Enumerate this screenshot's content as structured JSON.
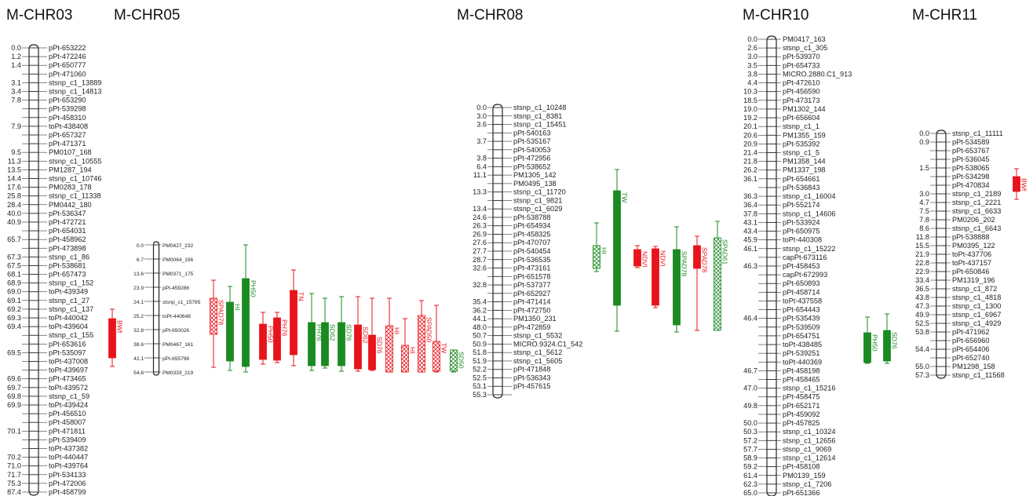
{
  "colors": {
    "red": "#e8141b",
    "green": "#1a8a21"
  },
  "chromosomes": [
    {
      "id": "M-CHR03",
      "title": "M-CHR03",
      "markers": [
        {
          "pos": "0.0",
          "name": "pPt-653222"
        },
        {
          "pos": "1.2",
          "name": "pPt-472246"
        },
        {
          "pos": "1.4",
          "name": "pPt-650777"
        },
        {
          "pos": "",
          "name": "pPt-471060"
        },
        {
          "pos": "3.1",
          "name": "stsnp_c1_13889"
        },
        {
          "pos": "3.4",
          "name": "stsnp_c1_14813"
        },
        {
          "pos": "7.8",
          "name": "pPt-653290"
        },
        {
          "pos": "",
          "name": "pPt-539298"
        },
        {
          "pos": "",
          "name": "pPt-458310"
        },
        {
          "pos": "7.9",
          "name": "toPt-438408"
        },
        {
          "pos": "",
          "name": "pPt-657327"
        },
        {
          "pos": "",
          "name": "pPt-471371"
        },
        {
          "pos": "9.5",
          "name": "PM0107_168"
        },
        {
          "pos": "11.3",
          "name": "stsnp_c1_10555"
        },
        {
          "pos": "13.5",
          "name": "PM1287_194"
        },
        {
          "pos": "14.4",
          "name": "stsnp_c1_10746"
        },
        {
          "pos": "17.6",
          "name": "PM0283_178"
        },
        {
          "pos": "25.8",
          "name": "stsnp_c1_11338"
        },
        {
          "pos": "28.4",
          "name": "PM0442_180"
        },
        {
          "pos": "40.0",
          "name": "pPt-536347"
        },
        {
          "pos": "40.9",
          "name": "pPt-472721"
        },
        {
          "pos": "",
          "name": "pPt-654031"
        },
        {
          "pos": "65.7",
          "name": "pPt-458962"
        },
        {
          "pos": "",
          "name": "pPt-473898"
        },
        {
          "pos": "67.3",
          "name": "stsnp_c1_86"
        },
        {
          "pos": "67.5",
          "name": "pPt-538681"
        },
        {
          "pos": "68.1",
          "name": "pPt-657473"
        },
        {
          "pos": "68.9",
          "name": "stsnp_c1_152"
        },
        {
          "pos": "69.0",
          "name": "toPt-439349"
        },
        {
          "pos": "69.1",
          "name": "stsnp_c1_27"
        },
        {
          "pos": "69.2",
          "name": "stsnp_c1_137"
        },
        {
          "pos": "69.3",
          "name": "toPt-440042"
        },
        {
          "pos": "69.4",
          "name": "toPt-439604"
        },
        {
          "pos": "",
          "name": "stsnp_c1_155"
        },
        {
          "pos": "",
          "name": "pPt-653616"
        },
        {
          "pos": "69.5",
          "name": "pPt-535097"
        },
        {
          "pos": "",
          "name": "toPt-437008"
        },
        {
          "pos": "",
          "name": "toPt-439697"
        },
        {
          "pos": "69.6",
          "name": "pPt-473465"
        },
        {
          "pos": "69.7",
          "name": "toPt-439572"
        },
        {
          "pos": "69.8",
          "name": "stsnp_c1_59"
        },
        {
          "pos": "69.9",
          "name": "toPt-439424"
        },
        {
          "pos": "",
          "name": "pPt-456510"
        },
        {
          "pos": "",
          "name": "pPt-458007"
        },
        {
          "pos": "70.1",
          "name": "pPt-471811"
        },
        {
          "pos": "",
          "name": "pPt-539409"
        },
        {
          "pos": "",
          "name": "toPt-437382"
        },
        {
          "pos": "70.2",
          "name": "toPt-440447"
        },
        {
          "pos": "71.0",
          "name": "toPt-439764"
        },
        {
          "pos": "71.7",
          "name": "pPt-534133"
        },
        {
          "pos": "75.3",
          "name": "pPt-472006"
        },
        {
          "pos": "87.4",
          "name": "pPt-458799"
        }
      ]
    },
    {
      "id": "M-CHR05",
      "title": "M-CHR05",
      "markers": [
        {
          "pos": "0.0",
          "name": "PM0427_232"
        },
        {
          "pos": "6.7",
          "name": "PM0064_156"
        },
        {
          "pos": "13.6",
          "name": "PM0371_175"
        },
        {
          "pos": "23.9",
          "name": "pPt-459286"
        },
        {
          "pos": "24.1",
          "name": "stsnp_c1_15785"
        },
        {
          "pos": "25.2",
          "name": "toPt-440648"
        },
        {
          "pos": "32.8",
          "name": "pPt-650026"
        },
        {
          "pos": "38.6",
          "name": "PM0467_161"
        },
        {
          "pos": "42.1",
          "name": "pPt-655798"
        },
        {
          "pos": "54.8",
          "name": "PM0333_219"
        }
      ]
    },
    {
      "id": "M-CHR08",
      "title": "M-CHR08",
      "markers": [
        {
          "pos": "0.0",
          "name": "stsnp_c1_10248"
        },
        {
          "pos": "3.0",
          "name": "stsnp_c1_8381"
        },
        {
          "pos": "3.6",
          "name": "stsnp_c1_15451"
        },
        {
          "pos": "",
          "name": "pPt-540163"
        },
        {
          "pos": "3.7",
          "name": "pPt-535167"
        },
        {
          "pos": "",
          "name": "pPt-540053"
        },
        {
          "pos": "3.8",
          "name": "pPt-472956"
        },
        {
          "pos": "6.4",
          "name": "pPt-538652"
        },
        {
          "pos": "11.1",
          "name": "PM1305_142"
        },
        {
          "pos": "",
          "name": "PM0495_138"
        },
        {
          "pos": "13.3",
          "name": "stsnp_c1_11720"
        },
        {
          "pos": "",
          "name": "stsnp_c1_9821"
        },
        {
          "pos": "13.4",
          "name": "stsnp_c1_6029"
        },
        {
          "pos": "24.6",
          "name": "pPt-538788"
        },
        {
          "pos": "26.3",
          "name": "pPt-654934"
        },
        {
          "pos": "26.9",
          "name": "pPt-458325"
        },
        {
          "pos": "27.6",
          "name": "pPt-470707"
        },
        {
          "pos": "27.7",
          "name": "pPt-540454"
        },
        {
          "pos": "28.7",
          "name": "pPt-536535"
        },
        {
          "pos": "32.6",
          "name": "pPt-473161"
        },
        {
          "pos": "",
          "name": "pPt-651578"
        },
        {
          "pos": "32.8",
          "name": "pPt-537377"
        },
        {
          "pos": "",
          "name": "pPt-652927"
        },
        {
          "pos": "35.4",
          "name": "pPt-471414"
        },
        {
          "pos": "36.2",
          "name": "pPt-472750"
        },
        {
          "pos": "44.1",
          "name": "PM1350_231"
        },
        {
          "pos": "48.0",
          "name": "pPt-472859"
        },
        {
          "pos": "50.7",
          "name": "stsnp_c1_5532"
        },
        {
          "pos": "50.9",
          "name": "MICRO.9324.C1_542"
        },
        {
          "pos": "51.8",
          "name": "stsnp_c1_5612"
        },
        {
          "pos": "51.9",
          "name": "stsnp_c1_5605"
        },
        {
          "pos": "52.2",
          "name": "pPt-471848"
        },
        {
          "pos": "52.5",
          "name": "pPt-536343"
        },
        {
          "pos": "53.1",
          "name": "pPt-457615"
        },
        {
          "pos": "55.3",
          "name": ""
        }
      ]
    },
    {
      "id": "M-CHR10",
      "title": "M-CHR10",
      "markers": [
        {
          "pos": "0.0",
          "name": "PM0417_163"
        },
        {
          "pos": "2.6",
          "name": "stsnp_c1_305"
        },
        {
          "pos": "3.0",
          "name": "pPt-539370"
        },
        {
          "pos": "3.5",
          "name": "pPt-654733"
        },
        {
          "pos": "3.8",
          "name": "MICRO.2880.C1_913"
        },
        {
          "pos": "4.4",
          "name": "pPt-472610"
        },
        {
          "pos": "10.3",
          "name": "pPt-456590"
        },
        {
          "pos": "18.5",
          "name": "pPt-473173"
        },
        {
          "pos": "19.0",
          "name": "PM1302_144"
        },
        {
          "pos": "19.2",
          "name": "pPt-656604"
        },
        {
          "pos": "20.1",
          "name": "stsnp_c1_1"
        },
        {
          "pos": "20.6",
          "name": "PM1355_159"
        },
        {
          "pos": "20.9",
          "name": "pPt-535392"
        },
        {
          "pos": "21.4",
          "name": "stsnp_c1_5"
        },
        {
          "pos": "21.8",
          "name": "PM1358_144"
        },
        {
          "pos": "26.2",
          "name": "PM1337_198"
        },
        {
          "pos": "36.1",
          "name": "pPt-654661"
        },
        {
          "pos": "",
          "name": "pPt-536843"
        },
        {
          "pos": "36.3",
          "name": "stsnp_c1_16004"
        },
        {
          "pos": "36.4",
          "name": "pPt-552174"
        },
        {
          "pos": "37.8",
          "name": "stsnp_c1_14606"
        },
        {
          "pos": "43.1",
          "name": "pPt-533924"
        },
        {
          "pos": "43.4",
          "name": "pPt-650975"
        },
        {
          "pos": "45.9",
          "name": "toPt-440308"
        },
        {
          "pos": "46.1",
          "name": "stsnp_c1_15222"
        },
        {
          "pos": "",
          "name": "capPt-673116"
        },
        {
          "pos": "46.3",
          "name": "pPt-458453"
        },
        {
          "pos": "",
          "name": "capPt-672993"
        },
        {
          "pos": "",
          "name": "pPt-650893"
        },
        {
          "pos": "",
          "name": "pPt-458714"
        },
        {
          "pos": "",
          "name": "toPt-437558"
        },
        {
          "pos": "",
          "name": "pPt-654443"
        },
        {
          "pos": "46.4",
          "name": "pPt-535439"
        },
        {
          "pos": "",
          "name": "pPt-539509"
        },
        {
          "pos": "",
          "name": "pPt-654751"
        },
        {
          "pos": "",
          "name": "toPt-438485"
        },
        {
          "pos": "",
          "name": "pPt-539251"
        },
        {
          "pos": "",
          "name": "toPt-440369"
        },
        {
          "pos": "46.7",
          "name": "pPt-458198"
        },
        {
          "pos": "",
          "name": "pPt-458465"
        },
        {
          "pos": "47.0",
          "name": "stsnp_c1_15216"
        },
        {
          "pos": "",
          "name": "pPt-458475"
        },
        {
          "pos": "49.8",
          "name": "pPt-652171"
        },
        {
          "pos": "",
          "name": "pPt-459092"
        },
        {
          "pos": "50.0",
          "name": "pPt-457825"
        },
        {
          "pos": "50.3",
          "name": "stsnp_c1_10324"
        },
        {
          "pos": "57.2",
          "name": "stsnp_c1_12656"
        },
        {
          "pos": "57.7",
          "name": "stsnp_c1_9069"
        },
        {
          "pos": "58.9",
          "name": "stsnp_c1_12614"
        },
        {
          "pos": "59.2",
          "name": "pPt-458108"
        },
        {
          "pos": "61.4",
          "name": "PM0139_159"
        },
        {
          "pos": "62.3",
          "name": "stsnp_c1_7206"
        },
        {
          "pos": "65.0",
          "name": "pPt-651366"
        }
      ]
    },
    {
      "id": "M-CHR11",
      "title": "M-CHR11",
      "markers": [
        {
          "pos": "0.0",
          "name": "stsnp_c1_11111"
        },
        {
          "pos": "0.9",
          "name": "pPt-534589"
        },
        {
          "pos": "",
          "name": "pPt-653767"
        },
        {
          "pos": "",
          "name": "pPt-536045"
        },
        {
          "pos": "1.5",
          "name": "pPt-538065"
        },
        {
          "pos": "",
          "name": "pPt-534298"
        },
        {
          "pos": "",
          "name": "pPt-470834"
        },
        {
          "pos": "3.0",
          "name": "stsnp_c1_2189"
        },
        {
          "pos": "4.7",
          "name": "stsnp_c1_2221"
        },
        {
          "pos": "7.5",
          "name": "stsnp_c1_6633"
        },
        {
          "pos": "7.8",
          "name": "PM0206_202"
        },
        {
          "pos": "8.6",
          "name": "stsnp_c1_6643"
        },
        {
          "pos": "11.8",
          "name": "pPt-538888"
        },
        {
          "pos": "15.5",
          "name": "PM0395_122"
        },
        {
          "pos": "21.9",
          "name": "toPt-437706"
        },
        {
          "pos": "22.8",
          "name": "toPt-437157"
        },
        {
          "pos": "22.9",
          "name": "pPt-650846"
        },
        {
          "pos": "33.4",
          "name": "PM1319_196"
        },
        {
          "pos": "36.5",
          "name": "stsnp_c1_872"
        },
        {
          "pos": "43.8",
          "name": "stsnp_c1_4818"
        },
        {
          "pos": "47.3",
          "name": "stsnp_c1_1300"
        },
        {
          "pos": "49.9",
          "name": "stsnp_c1_6967"
        },
        {
          "pos": "52.5",
          "name": "stsnp_c1_4929"
        },
        {
          "pos": "53.8",
          "name": "pPt-471962"
        },
        {
          "pos": "",
          "name": "pPt-656960"
        },
        {
          "pos": "54.4",
          "name": "pPt-654406"
        },
        {
          "pos": "",
          "name": "pPt-652740"
        },
        {
          "pos": "55.0",
          "name": "PM1298_158"
        },
        {
          "pos": "57.3",
          "name": "stsnp_c1_11568"
        }
      ]
    }
  ],
  "qtls": [
    {
      "label": "BWf",
      "color": "red",
      "style": "solid"
    },
    {
      "label": "SPAD78",
      "color": "red",
      "style": "hatch"
    },
    {
      "label": "HI",
      "color": "green",
      "style": "solid"
    },
    {
      "label": "PH50",
      "color": "green",
      "style": "solid"
    },
    {
      "label": "PH50",
      "color": "red",
      "style": "solid"
    },
    {
      "label": "PH76",
      "color": "red",
      "style": "solid"
    },
    {
      "label": "TN",
      "color": "red",
      "style": "solid"
    },
    {
      "label": "PH76",
      "color": "green",
      "style": "solid"
    },
    {
      "label": "SD62",
      "color": "green",
      "style": "solid"
    },
    {
      "label": "SD76",
      "color": "green",
      "style": "solid"
    },
    {
      "label": "SD62",
      "color": "red",
      "style": "solid"
    },
    {
      "label": "SD76",
      "color": "red",
      "style": "solid"
    },
    {
      "label": "HI",
      "color": "red",
      "style": "hatch"
    },
    {
      "label": "HI",
      "color": "red",
      "style": "hatch"
    },
    {
      "label": "SPAD50",
      "color": "red",
      "style": "hatch"
    },
    {
      "label": "TW",
      "color": "red",
      "style": "hatch"
    },
    {
      "label": "SD50",
      "color": "green",
      "style": "hatch"
    },
    {
      "label": "HI",
      "color": "green",
      "style": "hatch"
    },
    {
      "label": "TW",
      "color": "green",
      "style": "solid"
    },
    {
      "label": "NDVI",
      "color": "red",
      "style": "solid"
    },
    {
      "label": "NDVI",
      "color": "red",
      "style": "solid"
    },
    {
      "label": "SPAD78",
      "color": "green",
      "style": "solid"
    },
    {
      "label": "SPAD78",
      "color": "red",
      "style": "solid"
    },
    {
      "label": "SPAD61",
      "color": "green",
      "style": "hatch"
    },
    {
      "label": "PH50",
      "color": "green",
      "style": "solid"
    },
    {
      "label": "SD76",
      "color": "green",
      "style": "solid"
    },
    {
      "label": "BWf",
      "color": "red",
      "style": "solid"
    }
  ]
}
